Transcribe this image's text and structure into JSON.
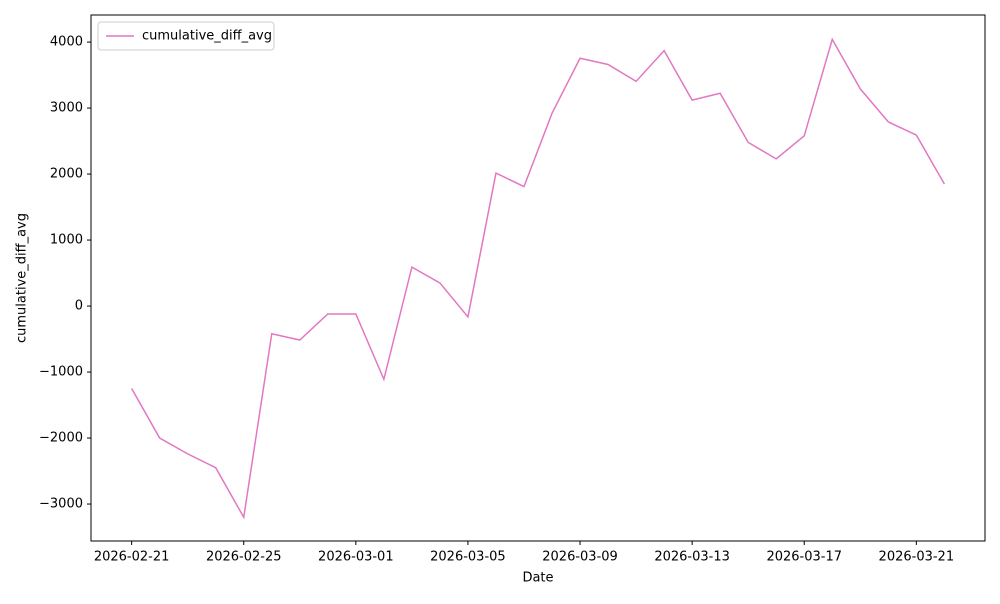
{
  "chart_data": {
    "type": "line",
    "x_label": "Date",
    "y_label": "cumulative_diff_avg",
    "x": [
      "2026-02-21",
      "2026-02-22",
      "2026-02-23",
      "2026-02-24",
      "2026-02-25",
      "2026-02-26",
      "2026-02-27",
      "2026-02-28",
      "2026-03-01",
      "2026-03-02",
      "2026-03-03",
      "2026-03-04",
      "2026-03-05",
      "2026-03-06",
      "2026-03-07",
      "2026-03-08",
      "2026-03-09",
      "2026-03-10",
      "2026-03-11",
      "2026-03-12",
      "2026-03-13",
      "2026-03-14",
      "2026-03-15",
      "2026-03-16",
      "2026-03-17",
      "2026-03-18",
      "2026-03-19",
      "2026-03-20",
      "2026-03-21",
      "2026-03-22"
    ],
    "series": [
      {
        "name": "cumulative_diff_avg",
        "color": "#e377c2",
        "values": [
          -1250,
          -2000,
          -2240,
          -2450,
          -3200,
          -420,
          -515,
          -120,
          -120,
          -1110,
          590,
          350,
          -165,
          2015,
          1810,
          2920,
          3755,
          3660,
          3405,
          3870,
          3120,
          3225,
          2480,
          2230,
          2580,
          4040,
          3290,
          2790,
          2590,
          1850
        ]
      }
    ],
    "xticks": [
      "2026-02-21",
      "2026-02-25",
      "2026-03-01",
      "2026-03-05",
      "2026-03-09",
      "2026-03-13",
      "2026-03-17",
      "2026-03-21"
    ],
    "ylim": [
      -3560,
      4410
    ],
    "yticks": [
      {
        "value": -3000,
        "label": "−3000"
      },
      {
        "value": -2000,
        "label": "−2000"
      },
      {
        "value": -1000,
        "label": "−1000"
      },
      0,
      1000,
      2000,
      3000,
      4000
    ],
    "grid": false,
    "legend": "upper-left"
  }
}
